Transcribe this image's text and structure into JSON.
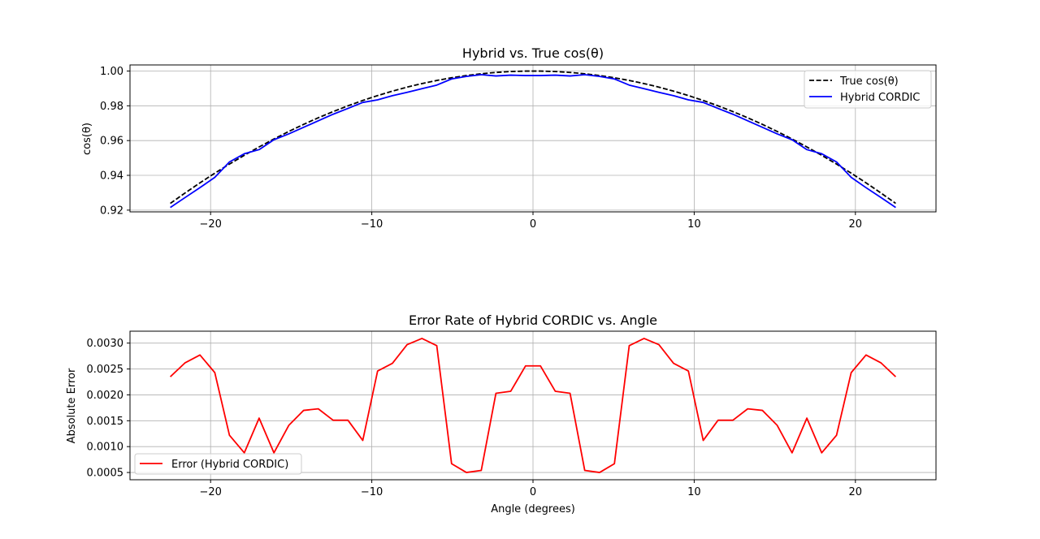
{
  "chart_data": [
    {
      "type": "line",
      "title": "Hybrid vs. True cos(θ)",
      "xlabel": "",
      "ylabel": "cos(θ)",
      "xlim": [
        -25,
        25
      ],
      "ylim": [
        0.919,
        1.0035
      ],
      "xticks": [
        -20,
        -10,
        0,
        10,
        20
      ],
      "xtick_labels": [
        "−20",
        "−10",
        "0",
        "10",
        "20"
      ],
      "yticks": [
        0.92,
        0.94,
        0.96,
        0.98,
        1.0
      ],
      "ytick_labels": [
        "0.92",
        "0.94",
        "0.96",
        "0.98",
        "1.00"
      ],
      "grid": true,
      "legend_position": "upper right",
      "series": [
        {
          "name": "True cos(θ)",
          "color": "#000000",
          "dash": true,
          "x": [
            -22.5,
            -21.58,
            -20.66,
            -19.74,
            -18.83,
            -17.91,
            -16.99,
            -16.07,
            -15.15,
            -14.23,
            -13.32,
            -12.4,
            -11.48,
            -10.56,
            -9.64,
            -8.72,
            -7.81,
            -6.89,
            -5.97,
            -5.05,
            -4.13,
            -3.21,
            -2.3,
            -1.38,
            -0.46,
            0.46,
            1.38,
            2.3,
            3.21,
            4.13,
            5.05,
            5.97,
            6.89,
            7.81,
            8.72,
            9.64,
            10.56,
            11.48,
            12.4,
            13.32,
            14.23,
            15.15,
            16.07,
            16.99,
            17.91,
            18.83,
            19.74,
            20.66,
            21.58,
            22.5
          ],
          "y": [
            0.92388,
            0.92988,
            0.93569,
            0.94126,
            0.94648,
            0.95154,
            0.95634,
            0.96091,
            0.96524,
            0.96932,
            0.97311,
            0.97667,
            0.97999,
            0.98306,
            0.98589,
            0.98844,
            0.99073,
            0.99278,
            0.99458,
            0.99612,
            0.9974,
            0.99843,
            0.99919,
            0.99971,
            0.99997,
            0.99997,
            0.99971,
            0.99919,
            0.99843,
            0.9974,
            0.99612,
            0.99458,
            0.99278,
            0.99073,
            0.98844,
            0.98589,
            0.98306,
            0.97999,
            0.97667,
            0.97311,
            0.96932,
            0.96524,
            0.96091,
            0.95634,
            0.95154,
            0.94648,
            0.94126,
            0.93569,
            0.92988,
            0.92388
          ]
        },
        {
          "name": "Hybrid CORDIC",
          "color": "#0000ff",
          "dash": false,
          "x": [
            -22.5,
            -21.58,
            -20.66,
            -19.74,
            -18.83,
            -17.91,
            -16.99,
            -16.07,
            -15.15,
            -14.23,
            -13.32,
            -12.4,
            -11.48,
            -10.56,
            -9.64,
            -8.72,
            -7.81,
            -6.89,
            -5.97,
            -5.05,
            -4.13,
            -3.21,
            -2.3,
            -1.38,
            -0.46,
            0.46,
            1.38,
            2.3,
            3.21,
            4.13,
            5.05,
            5.97,
            6.89,
            7.81,
            8.72,
            9.64,
            10.56,
            11.48,
            12.4,
            13.32,
            14.23,
            15.15,
            16.07,
            16.99,
            17.91,
            18.83,
            19.74,
            20.66,
            21.58,
            22.5
          ],
          "y": [
            0.92153,
            0.92726,
            0.93292,
            0.93883,
            0.9477,
            0.95242,
            0.9548,
            0.9605,
            0.96383,
            0.96762,
            0.97138,
            0.97515,
            0.97848,
            0.98194,
            0.98343,
            0.98583,
            0.98776,
            0.98984,
            0.9919,
            0.99545,
            0.9969,
            0.99789,
            0.99716,
            0.99764,
            0.9974,
            0.9974,
            0.99764,
            0.99716,
            0.99789,
            0.9969,
            0.99545,
            0.9919,
            0.98984,
            0.98776,
            0.98583,
            0.98343,
            0.98194,
            0.97848,
            0.97515,
            0.97138,
            0.96762,
            0.96383,
            0.9605,
            0.9548,
            0.95242,
            0.9477,
            0.93883,
            0.93292,
            0.92726,
            0.92153
          ]
        }
      ]
    },
    {
      "type": "line",
      "title": "Error Rate of Hybrid CORDIC vs. Angle",
      "xlabel": "Angle (degrees)",
      "ylabel": "Absolute Error",
      "xlim": [
        -25,
        25
      ],
      "ylim": [
        0.00036,
        0.00323
      ],
      "xticks": [
        -20,
        -10,
        0,
        10,
        20
      ],
      "xtick_labels": [
        "−20",
        "−10",
        "0",
        "10",
        "20"
      ],
      "yticks": [
        0.0005,
        0.001,
        0.0015,
        0.002,
        0.0025,
        0.003
      ],
      "ytick_labels": [
        "0.0005",
        "0.0010",
        "0.0015",
        "0.0020",
        "0.0025",
        "0.0030"
      ],
      "grid": true,
      "legend_position": "lower left",
      "series": [
        {
          "name": "Error (Hybrid CORDIC)",
          "color": "#ff0000",
          "dash": false,
          "x": [
            -22.5,
            -21.58,
            -20.66,
            -19.74,
            -18.83,
            -17.91,
            -16.99,
            -16.07,
            -15.15,
            -14.23,
            -13.32,
            -12.4,
            -11.48,
            -10.56,
            -9.64,
            -8.72,
            -7.81,
            -6.89,
            -5.97,
            -5.05,
            -4.13,
            -3.21,
            -2.3,
            -1.38,
            -0.46,
            0.46,
            1.38,
            2.3,
            3.21,
            4.13,
            5.05,
            5.97,
            6.89,
            7.81,
            8.72,
            9.64,
            10.56,
            11.48,
            12.4,
            13.32,
            14.23,
            15.15,
            16.07,
            16.99,
            17.91,
            18.83,
            19.74,
            20.66,
            21.58,
            22.5
          ],
          "y": [
            0.00235,
            0.00262,
            0.00277,
            0.00243,
            0.00122,
            0.00088,
            0.00155,
            0.00088,
            0.00141,
            0.0017,
            0.00173,
            0.00151,
            0.00151,
            0.00112,
            0.00246,
            0.00261,
            0.00297,
            0.00309,
            0.00295,
            0.00067,
            0.0005,
            0.00054,
            0.00203,
            0.00207,
            0.00256,
            0.00256,
            0.00207,
            0.00203,
            0.00054,
            0.0005,
            0.00067,
            0.00295,
            0.00309,
            0.00297,
            0.00261,
            0.00246,
            0.00112,
            0.00151,
            0.00151,
            0.00173,
            0.0017,
            0.00141,
            0.00088,
            0.00155,
            0.00088,
            0.00122,
            0.00243,
            0.00277,
            0.00262,
            0.00235
          ]
        }
      ]
    }
  ]
}
